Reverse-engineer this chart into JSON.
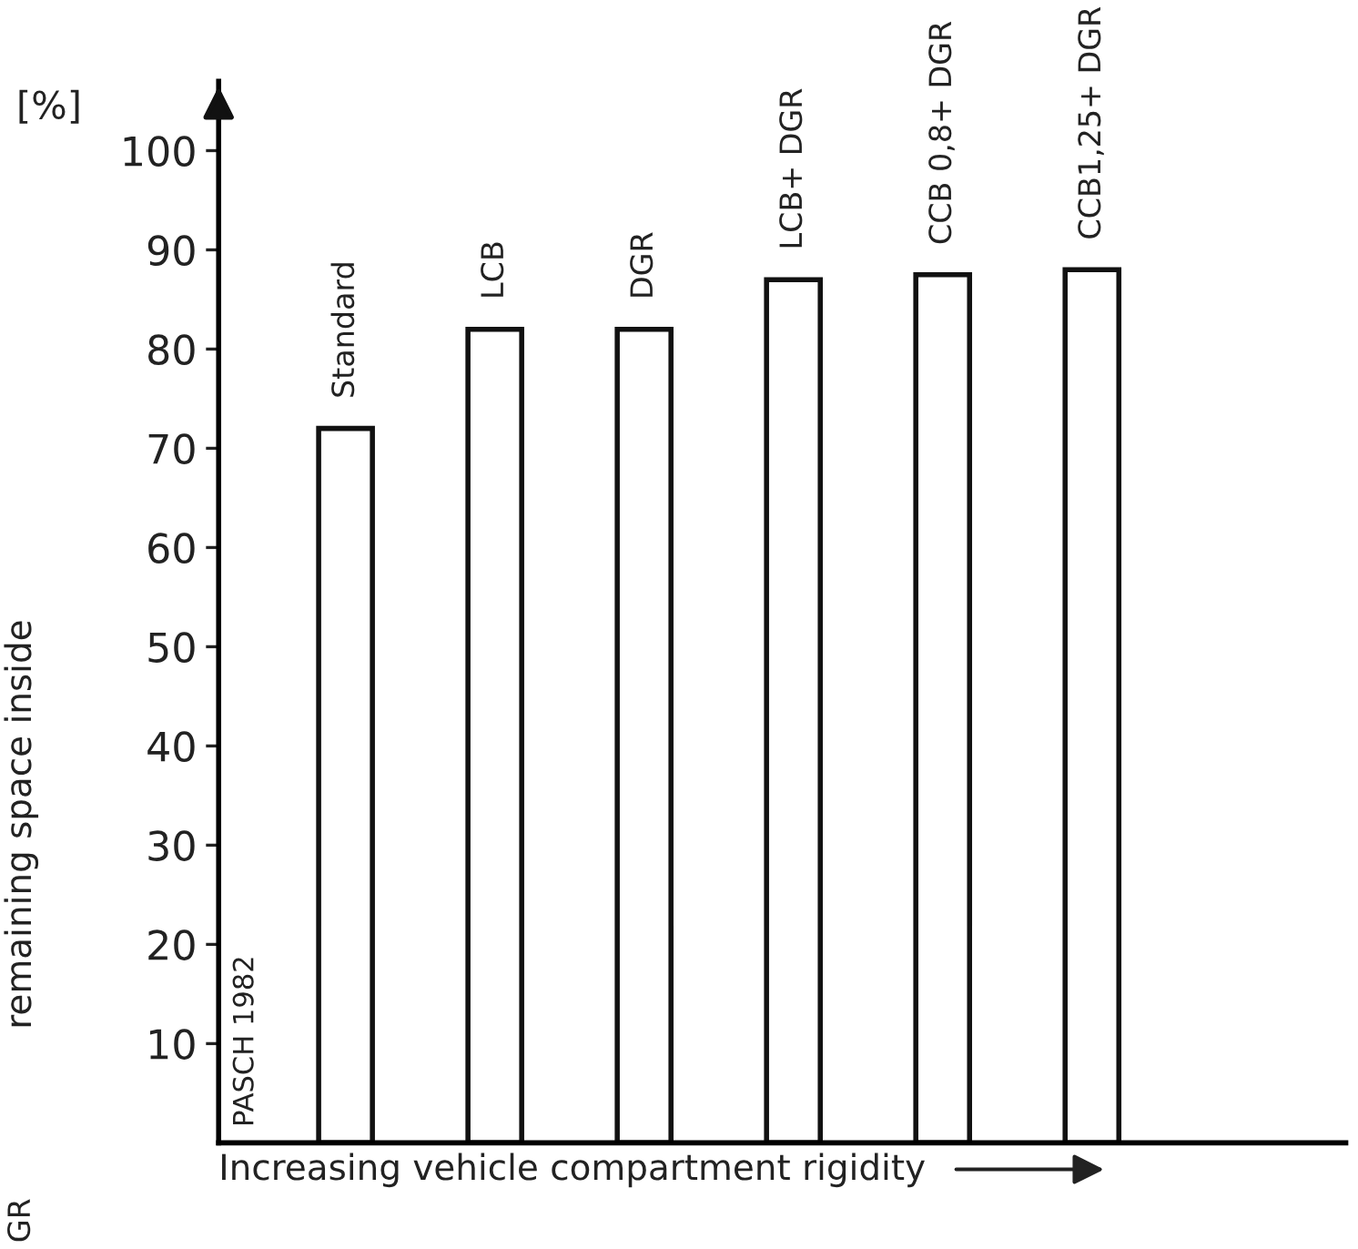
{
  "chart_data": {
    "type": "bar",
    "categories": [
      "Standard",
      "LCB",
      "DGR",
      "LCB+ DGR",
      "CCB 0,8+ DGR",
      "CCB1,25+ DGR"
    ],
    "values": [
      72,
      82,
      82,
      87,
      87.5,
      88
    ],
    "color": "#ffffff",
    "ylabel": "remaining space inside",
    "xlabel": "Increasing vehicle compartment rigidity",
    "annotations": [
      "[%]",
      "PASCH 1982",
      "GR"
    ],
    "ylim": [
      0,
      107
    ],
    "yticks": [
      10,
      20,
      30,
      40,
      50,
      60,
      70,
      80,
      90,
      100
    ],
    "tick_labels": "y",
    "grid": false,
    "legend": false
  }
}
